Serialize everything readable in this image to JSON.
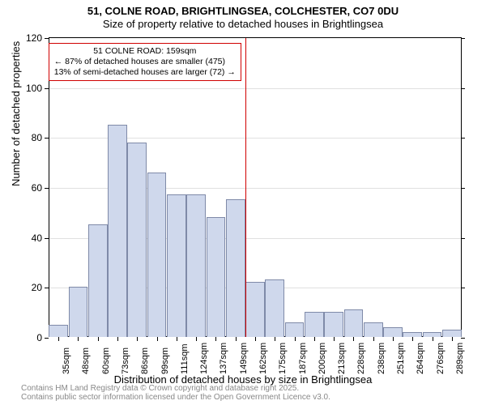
{
  "title": {
    "line1": "51, COLNE ROAD, BRIGHTLINGSEA, COLCHESTER, CO7 0DU",
    "line2": "Size of property relative to detached houses in Brightlingsea"
  },
  "chart": {
    "type": "histogram",
    "ylabel": "Number of detached properties",
    "xlabel": "Distribution of detached houses by size in Brightlingsea",
    "ylim": [
      0,
      120
    ],
    "ytick_step": 20,
    "yticks": [
      0,
      20,
      40,
      60,
      80,
      100,
      120
    ],
    "categories": [
      "35sqm",
      "48sqm",
      "60sqm",
      "73sqm",
      "86sqm",
      "99sqm",
      "111sqm",
      "124sqm",
      "137sqm",
      "149sqm",
      "162sqm",
      "175sqm",
      "187sqm",
      "200sqm",
      "213sqm",
      "228sqm",
      "238sqm",
      "251sqm",
      "264sqm",
      "276sqm",
      "289sqm"
    ],
    "values": [
      5,
      20,
      45,
      85,
      78,
      66,
      57,
      57,
      48,
      55,
      22,
      23,
      6,
      10,
      10,
      11,
      6,
      4,
      2,
      2,
      3
    ],
    "bar_fill": "#cfd8ec",
    "bar_stroke": "#7f8aa8",
    "grid_color": "#000000",
    "grid_opacity": 0.12,
    "background_color": "#ffffff",
    "axis_color": "#000000",
    "label_fontsize": 13,
    "tick_fontsize": 12,
    "marker": {
      "x_index": 10,
      "color": "#d00000",
      "callout_lines": [
        "51 COLNE ROAD: 159sqm",
        "← 87% of detached houses are smaller (475)",
        "13% of semi-detached houses are larger (72) →"
      ]
    }
  },
  "footer": {
    "line1": "Contains HM Land Registry data © Crown copyright and database right 2025.",
    "line2": "Contains public sector information licensed under the Open Government Licence v3.0."
  }
}
